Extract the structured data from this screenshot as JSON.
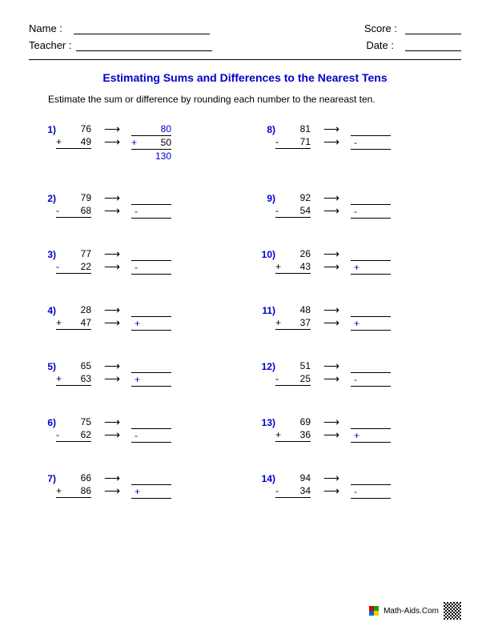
{
  "header": {
    "name_label": "Name :",
    "teacher_label": "Teacher :",
    "score_label": "Score :",
    "date_label": "Date :"
  },
  "title": "Estimating Sums and Differences to the Nearest Tens",
  "instructions": "Estimate the sum or difference by rounding each number to the neareast ten.",
  "problems": [
    {
      "n": "1)",
      "a": "76",
      "op": "+",
      "b": "49",
      "ra": "80",
      "rb": "50",
      "res": "130"
    },
    {
      "n": "8)",
      "a": "81",
      "op": "-",
      "b": "71"
    },
    {
      "n": "2)",
      "a": "79",
      "op": "-",
      "b": "68"
    },
    {
      "n": "9)",
      "a": "92",
      "op": "-",
      "b": "54"
    },
    {
      "n": "3)",
      "a": "77",
      "op": "-",
      "b": "22"
    },
    {
      "n": "10)",
      "a": "26",
      "op": "+",
      "b": "43"
    },
    {
      "n": "4)",
      "a": "28",
      "op": "+",
      "b": "47"
    },
    {
      "n": "11)",
      "a": "48",
      "op": "+",
      "b": "37"
    },
    {
      "n": "5)",
      "a": "65",
      "op": "+",
      "b": "63"
    },
    {
      "n": "12)",
      "a": "51",
      "op": "-",
      "b": "25"
    },
    {
      "n": "6)",
      "a": "75",
      "op": "-",
      "b": "62"
    },
    {
      "n": "13)",
      "a": "69",
      "op": "+",
      "b": "36"
    },
    {
      "n": "7)",
      "a": "66",
      "op": "+",
      "b": "86"
    },
    {
      "n": "14)",
      "a": "94",
      "op": "-",
      "b": "34"
    }
  ],
  "footer": "Math-Aids.Com",
  "colors": {
    "accent": "#0000cc",
    "text": "#000000",
    "background": "#ffffff"
  },
  "layout": {
    "name_line_width": 170,
    "score_line_width": 70,
    "teacher_line_width": 170,
    "date_line_width": 70
  }
}
